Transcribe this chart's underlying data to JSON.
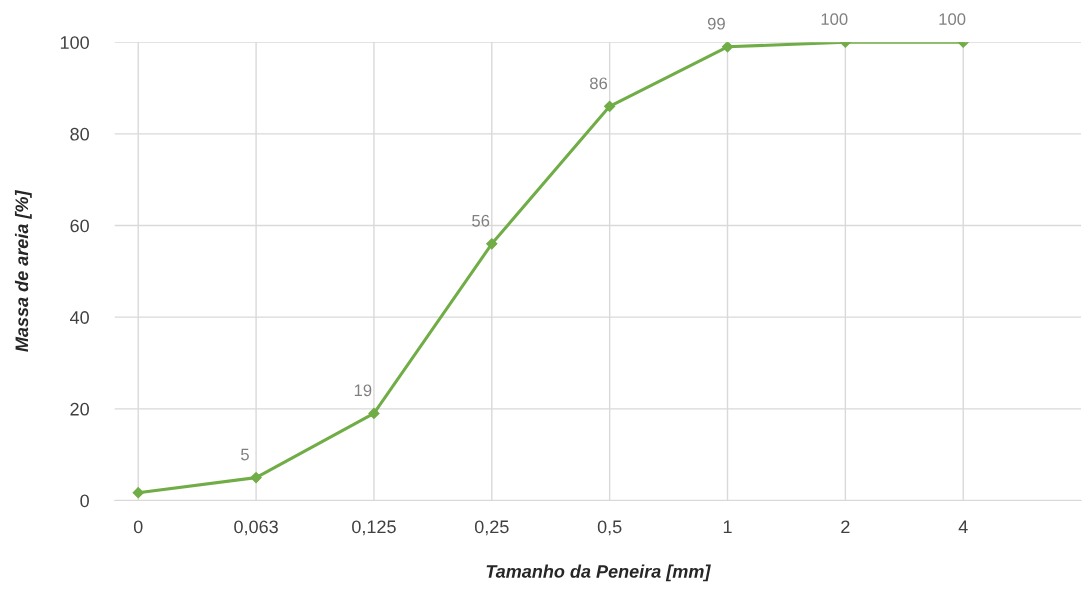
{
  "chart_data": {
    "type": "line",
    "xlabel": "Tamanho da Peneira [mm]",
    "ylabel": "Massa de areia [%]",
    "categories": [
      "0",
      "0,063",
      "0,125",
      "0,25",
      "0,5",
      "1",
      "2",
      "4"
    ],
    "series": [
      {
        "color": "#70ad47",
        "values": [
          1.7,
          5,
          19,
          56,
          86,
          99,
          100,
          100
        ]
      }
    ],
    "value_labels": [
      null,
      "5",
      "19",
      "56",
      "86",
      "99",
      "100",
      "100"
    ],
    "ylim": [
      0,
      100
    ],
    "yticks": [
      0,
      20,
      40,
      60,
      80,
      100
    ],
    "grid": true,
    "marker": "diamond",
    "line_style": "solid",
    "legend": false
  }
}
